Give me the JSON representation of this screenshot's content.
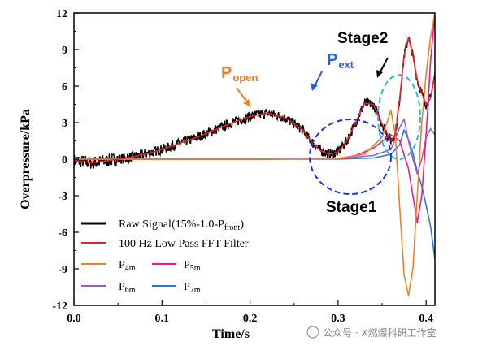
{
  "chart_data": {
    "type": "line",
    "xlabel": "Time/s",
    "ylabel": "Overpressure/kPa",
    "xlim": [
      0.0,
      0.41
    ],
    "ylim": [
      -12,
      12
    ],
    "x_ticks": [
      "0.0",
      "0.1",
      "0.2",
      "0.3",
      "0.4"
    ],
    "x_tick_values": [
      0.0,
      0.1,
      0.2,
      0.3,
      0.4
    ],
    "y_ticks": [
      "12",
      "9",
      "6",
      "3",
      "0",
      "-3",
      "-6",
      "-9",
      "-12"
    ],
    "y_tick_values": [
      12,
      9,
      6,
      3,
      0,
      -3,
      -6,
      -9,
      -12
    ],
    "grid": false,
    "legend_position": "bottom-left",
    "series": [
      {
        "name": "Raw Signal(15%-1.0-P",
        "name_sub": "front",
        "name_suffix": ")",
        "color": "#000000",
        "style": "noisy",
        "points": [
          [
            0.0,
            -0.1
          ],
          [
            0.02,
            -0.3
          ],
          [
            0.04,
            -0.1
          ],
          [
            0.06,
            0.1
          ],
          [
            0.08,
            0.4
          ],
          [
            0.1,
            0.8
          ],
          [
            0.12,
            1.3
          ],
          [
            0.14,
            1.8
          ],
          [
            0.16,
            2.4
          ],
          [
            0.18,
            3.0
          ],
          [
            0.2,
            3.5
          ],
          [
            0.22,
            3.8
          ],
          [
            0.24,
            3.4
          ],
          [
            0.26,
            2.4
          ],
          [
            0.27,
            1.4
          ],
          [
            0.28,
            0.7
          ],
          [
            0.29,
            0.4
          ],
          [
            0.3,
            0.6
          ],
          [
            0.31,
            1.5
          ],
          [
            0.32,
            3.0
          ],
          [
            0.33,
            4.6
          ],
          [
            0.34,
            4.5
          ],
          [
            0.35,
            2.9
          ],
          [
            0.36,
            1.5
          ],
          [
            0.365,
            2.0
          ],
          [
            0.37,
            5.0
          ],
          [
            0.375,
            8.5
          ],
          [
            0.38,
            10.0
          ],
          [
            0.385,
            8.5
          ],
          [
            0.39,
            6.5
          ],
          [
            0.395,
            5.4
          ],
          [
            0.4,
            4.5
          ],
          [
            0.405,
            5.0
          ],
          [
            0.41,
            7.0
          ]
        ]
      },
      {
        "name": "100 Hz Low Pass FFT Filter",
        "color": "#e8202a",
        "style": "line",
        "points": [
          [
            0.0,
            -0.1
          ],
          [
            0.02,
            -0.3
          ],
          [
            0.04,
            -0.1
          ],
          [
            0.06,
            0.1
          ],
          [
            0.08,
            0.4
          ],
          [
            0.1,
            0.8
          ],
          [
            0.12,
            1.3
          ],
          [
            0.14,
            1.8
          ],
          [
            0.16,
            2.4
          ],
          [
            0.18,
            3.0
          ],
          [
            0.2,
            3.5
          ],
          [
            0.22,
            3.8
          ],
          [
            0.24,
            3.4
          ],
          [
            0.26,
            2.4
          ],
          [
            0.27,
            1.4
          ],
          [
            0.28,
            0.7
          ],
          [
            0.29,
            0.4
          ],
          [
            0.3,
            0.6
          ],
          [
            0.31,
            1.5
          ],
          [
            0.32,
            3.0
          ],
          [
            0.33,
            4.6
          ],
          [
            0.34,
            4.5
          ],
          [
            0.35,
            2.9
          ],
          [
            0.36,
            1.5
          ],
          [
            0.365,
            2.0
          ],
          [
            0.37,
            5.0
          ],
          [
            0.375,
            8.5
          ],
          [
            0.38,
            10.0
          ],
          [
            0.385,
            8.5
          ],
          [
            0.39,
            6.5
          ],
          [
            0.395,
            5.4
          ],
          [
            0.4,
            4.5
          ],
          [
            0.405,
            5.0
          ],
          [
            0.41,
            7.0
          ]
        ]
      },
      {
        "name": "P",
        "name_sub": "4m",
        "color": "#f08020",
        "style": "line",
        "points": [
          [
            0.0,
            0.0
          ],
          [
            0.1,
            0.0
          ],
          [
            0.2,
            0.0
          ],
          [
            0.3,
            0.05
          ],
          [
            0.33,
            0.4
          ],
          [
            0.35,
            1.8
          ],
          [
            0.36,
            4.0
          ],
          [
            0.365,
            2.0
          ],
          [
            0.37,
            -4.0
          ],
          [
            0.375,
            -9.5
          ],
          [
            0.38,
            -11.2
          ],
          [
            0.385,
            -9.0
          ],
          [
            0.39,
            -3.0
          ],
          [
            0.395,
            3.0
          ],
          [
            0.4,
            7.0
          ],
          [
            0.405,
            10.0
          ],
          [
            0.41,
            12.0
          ]
        ]
      },
      {
        "name": "P",
        "name_sub": "5m",
        "color": "#e61c8c",
        "style": "line",
        "points": [
          [
            0.0,
            0.0
          ],
          [
            0.1,
            0.0
          ],
          [
            0.2,
            0.0
          ],
          [
            0.3,
            0.05
          ],
          [
            0.32,
            0.3
          ],
          [
            0.34,
            0.9
          ],
          [
            0.36,
            2.0
          ],
          [
            0.37,
            1.5
          ],
          [
            0.38,
            -0.8
          ],
          [
            0.385,
            -3.0
          ],
          [
            0.39,
            -5.2
          ],
          [
            0.395,
            -3.0
          ],
          [
            0.4,
            2.0
          ],
          [
            0.405,
            8.0
          ],
          [
            0.41,
            12.0
          ]
        ]
      },
      {
        "name": "P",
        "name_sub": "6m",
        "color": "#9a60c8",
        "style": "line",
        "points": [
          [
            0.0,
            0.0
          ],
          [
            0.1,
            0.0
          ],
          [
            0.2,
            0.0
          ],
          [
            0.3,
            0.05
          ],
          [
            0.34,
            0.3
          ],
          [
            0.36,
            0.8
          ],
          [
            0.37,
            2.6
          ],
          [
            0.375,
            3.3
          ],
          [
            0.38,
            1.5
          ],
          [
            0.385,
            0.0
          ],
          [
            0.39,
            -1.2
          ],
          [
            0.395,
            0.0
          ],
          [
            0.4,
            1.8
          ],
          [
            0.405,
            2.5
          ],
          [
            0.41,
            2.0
          ]
        ]
      },
      {
        "name": "P",
        "name_sub": "7m",
        "color": "#2a78d8",
        "style": "line",
        "points": [
          [
            0.0,
            0.0
          ],
          [
            0.1,
            0.0
          ],
          [
            0.2,
            0.0
          ],
          [
            0.3,
            0.0
          ],
          [
            0.34,
            0.1
          ],
          [
            0.36,
            0.4
          ],
          [
            0.37,
            1.2
          ],
          [
            0.375,
            2.4
          ],
          [
            0.38,
            1.6
          ],
          [
            0.385,
            0.5
          ],
          [
            0.39,
            -1.0
          ],
          [
            0.395,
            -2.2
          ],
          [
            0.4,
            -3.8
          ],
          [
            0.405,
            -5.5
          ],
          [
            0.41,
            -8.2
          ]
        ]
      }
    ],
    "annotations": {
      "p_open": {
        "main": "P",
        "sub": "open"
      },
      "p_ext": {
        "main": "P",
        "sub": "ext"
      },
      "stage1": "Stage1",
      "stage2": "Stage2"
    }
  },
  "colors": {
    "p_open": "#f08020",
    "p_ext": "#3060d0",
    "stage1_ellipse": "#1c2ee8",
    "stage2_ellipse": "#30b8e8"
  },
  "watermark": "公众号 · X燃爆科研工作室"
}
